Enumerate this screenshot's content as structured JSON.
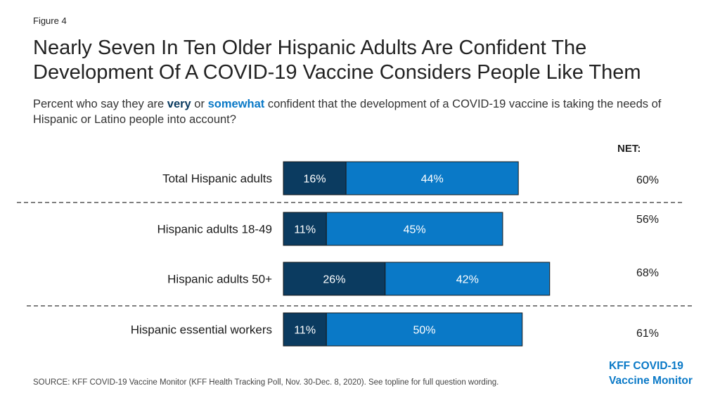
{
  "figure_label": "Figure 4",
  "title": "Nearly Seven In Ten Older Hispanic Adults Are Confident The Development Of A COVID-19 Vaccine Considers People Like Them",
  "subtitle": {
    "prefix": "Percent who say they are ",
    "very": "very",
    "middle": " or ",
    "somewhat": "somewhat",
    "suffix": " confident that the development of a COVID-19 vaccine is taking the needs of Hispanic or Latino people into account?"
  },
  "net_header": "NET:",
  "source": "SOURCE: KFF COVID-19 Vaccine Monitor (KFF Health Tracking Poll, Nov. 30-Dec. 8, 2020). See topline for full question wording.",
  "brand": {
    "line1": "KFF COVID-19",
    "line2": "Vaccine Monitor"
  },
  "colors": {
    "very": "#0b3b60",
    "somewhat": "#0a79c7",
    "very_text": "#0b3b60",
    "somewhat_text": "#0a79c7"
  },
  "chart_data": {
    "type": "bar",
    "orientation": "horizontal",
    "stacked": true,
    "categories": [
      "Total Hispanic adults",
      "Hispanic adults 18-49",
      "Hispanic adults 50+",
      "Hispanic essential workers"
    ],
    "series": [
      {
        "name": "very",
        "values": [
          16,
          11,
          26,
          11
        ],
        "color": "#0b3b60"
      },
      {
        "name": "somewhat",
        "values": [
          44,
          45,
          42,
          50
        ],
        "color": "#0a79c7"
      }
    ],
    "net": [
      60,
      56,
      68,
      61
    ],
    "value_suffix": "%",
    "dividers_after": [
      0,
      2
    ]
  }
}
